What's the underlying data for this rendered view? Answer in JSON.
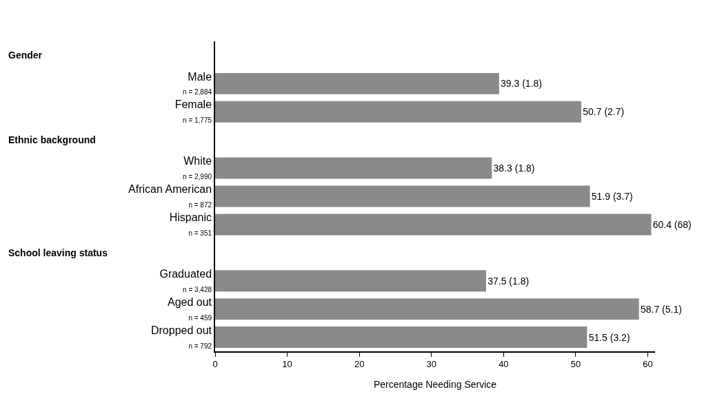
{
  "chart_data": {
    "type": "bar",
    "orientation": "horizontal",
    "xlabel": "Percentage Needing Service",
    "categories": [
      null,
      "Male\nn = 2,884",
      "Female\nn = 1,775",
      null,
      "White\nn = 2,990",
      "African American\nn = 872",
      "Hispanic\nn = 351",
      null,
      "Graduated\nn = 3,428",
      "Aged out\nn = 459",
      "Dropped out\nn = 792"
    ],
    "values": [
      null,
      39.3,
      50.7,
      null,
      38.3,
      51.9,
      60.4,
      null,
      37.5,
      58.7,
      51.5
    ],
    "value_labels": [
      null,
      "39.3 (1.8)",
      "50.7 (2.7)",
      null,
      "38.3 (1.8)",
      "51.9 (3.7)",
      "60.4 (68)",
      null,
      "37.5 (1.8)",
      "58.7 (5.1)",
      "51.5 (3.2)"
    ],
    "annotations": [
      "Gender",
      "Ethnic background",
      "School leaving status"
    ],
    "color": "#8a8a8a",
    "xlim": [
      0,
      61
    ],
    "xticks": [
      0,
      10,
      20,
      30,
      40,
      50,
      60
    ],
    "grid": false
  }
}
